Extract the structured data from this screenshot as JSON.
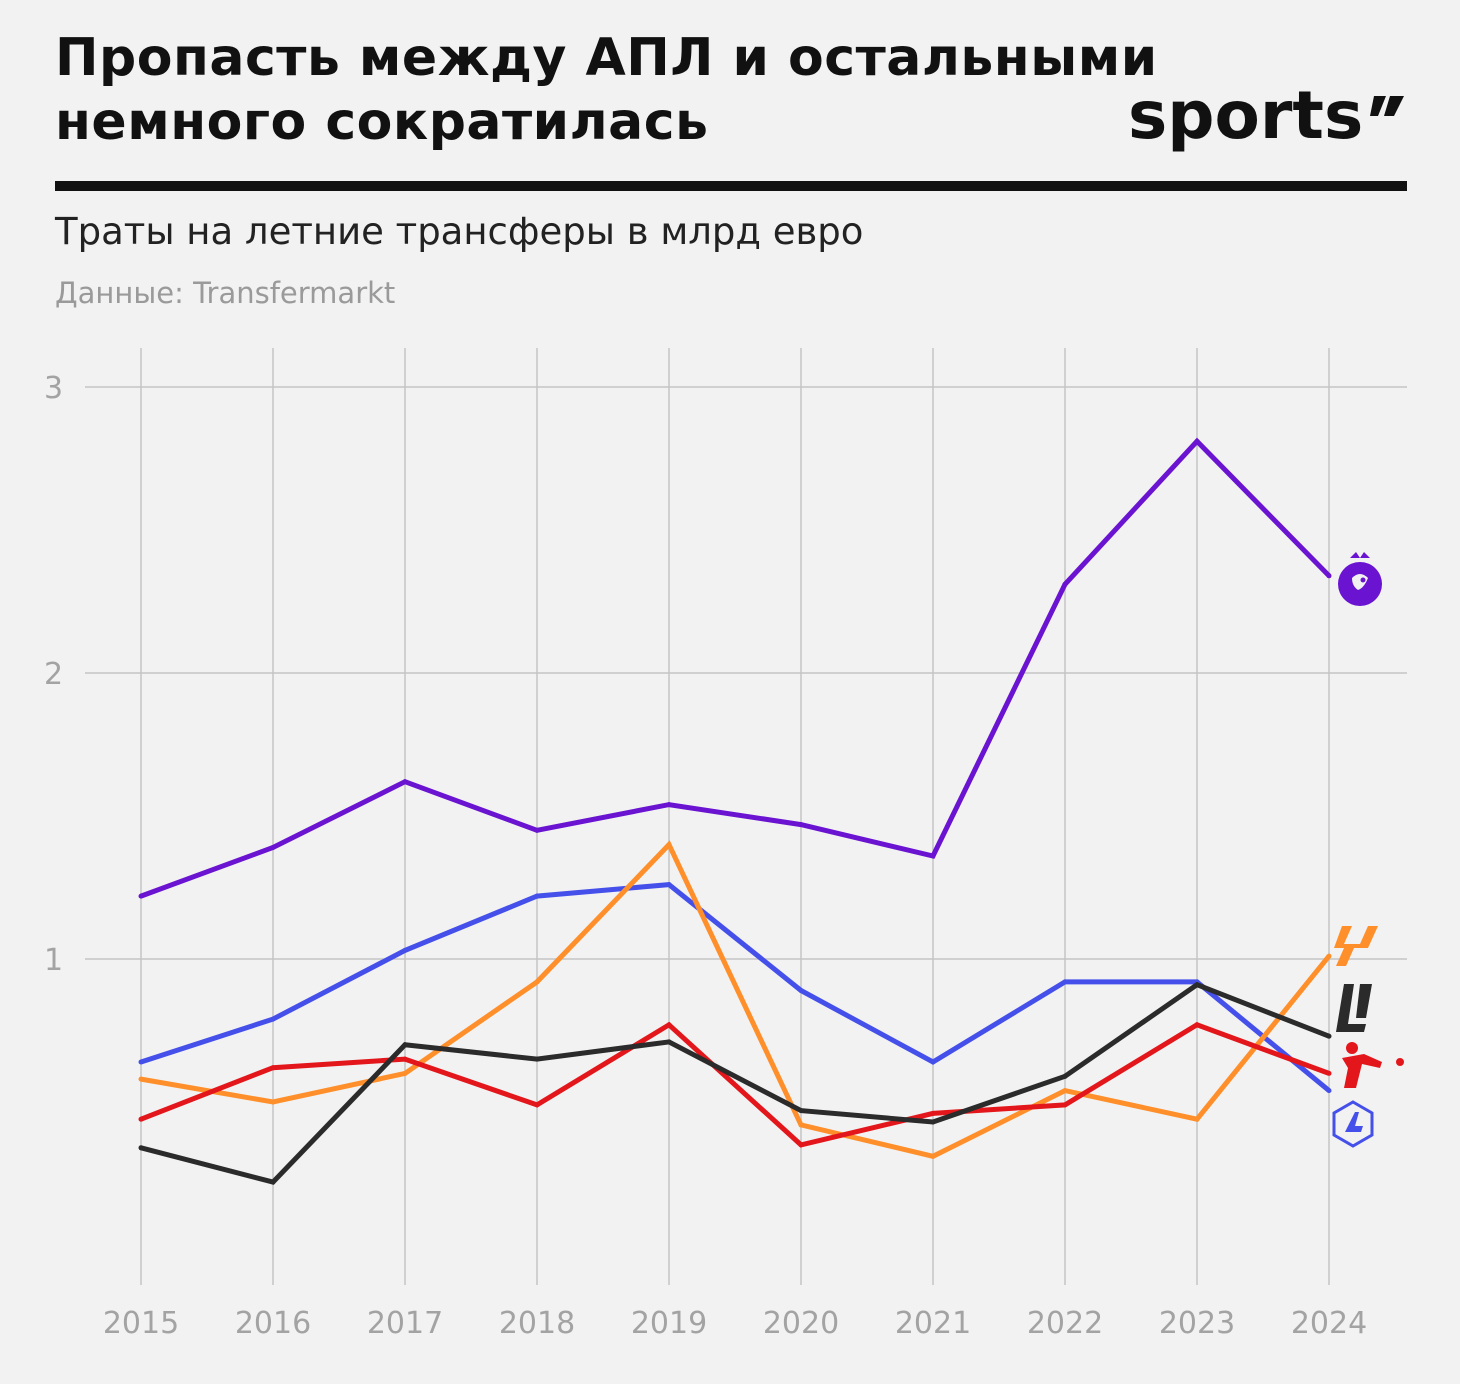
{
  "header": {
    "title_line1": "Пропасть между АПЛ и остальными",
    "title_line2": "немного сократилась",
    "brand": "sports",
    "subtitle": "Траты на летние трансферы в млрд евро",
    "source": "Данные: Transfermarkt"
  },
  "chart_data": {
    "type": "line",
    "title": "Пропасть между АПЛ и остальными немного сократилась",
    "subtitle": "Траты на летние трансферы в млрд евро",
    "x": [
      "2015",
      "2016",
      "2017",
      "2018",
      "2019",
      "2020",
      "2021",
      "2022",
      "2023",
      "2024"
    ],
    "yticks": [
      "1",
      "2",
      "3"
    ],
    "ylim": [
      0,
      3.1
    ],
    "grid": true,
    "series": [
      {
        "color": "#6a13d1",
        "icon": "premier-league-lion-icon",
        "values": [
          1.22,
          1.39,
          1.62,
          1.45,
          1.54,
          1.47,
          1.36,
          2.31,
          2.81,
          2.34
        ]
      },
      {
        "color": "#4550ea",
        "icon": "serie-a-icon",
        "values": [
          0.64,
          0.79,
          1.03,
          1.22,
          1.26,
          0.89,
          0.64,
          0.92,
          0.92,
          0.54
        ]
      },
      {
        "color": "#ff8f2a",
        "icon": "laliga-icon",
        "values": [
          0.58,
          0.5,
          0.6,
          0.92,
          1.4,
          0.42,
          0.31,
          0.54,
          0.44,
          1.01
        ]
      },
      {
        "color": "#e3171b",
        "icon": "bundesliga-icon",
        "values": [
          0.44,
          0.62,
          0.65,
          0.49,
          0.77,
          0.35,
          0.46,
          0.49,
          0.77,
          0.6
        ]
      },
      {
        "color": "#2b2b2b",
        "icon": "ligue1-icon",
        "values": [
          0.34,
          0.22,
          0.7,
          0.65,
          0.71,
          0.47,
          0.43,
          0.59,
          0.91,
          0.73
        ]
      }
    ]
  }
}
